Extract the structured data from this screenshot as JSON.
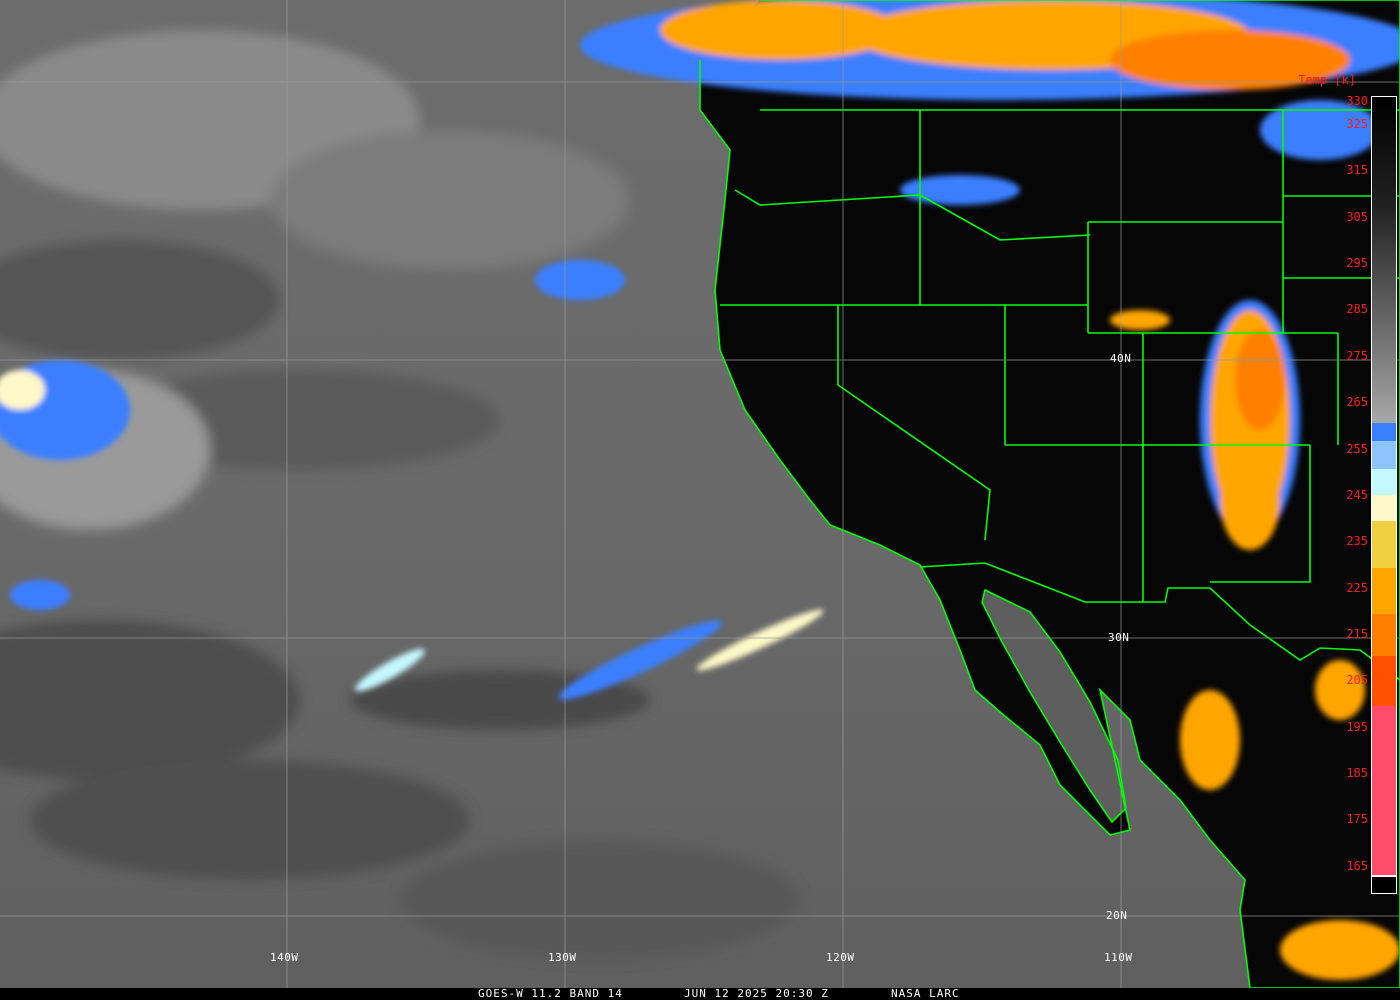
{
  "caption": {
    "satellite": "GOES-W 11.2 BAND 14",
    "datetime": "JUN 12 2025 20:30 Z",
    "credit": "NASA LARC"
  },
  "colorbar": {
    "title": "Temp [k]",
    "ticks": [
      "330",
      "325",
      "315",
      "305",
      "295",
      "285",
      "275",
      "265",
      "255",
      "245",
      "235",
      "225",
      "215",
      "205",
      "195",
      "185",
      "175",
      "165"
    ],
    "colors": {
      "warm_gray_top": "#000000",
      "warm_gray_bottom": "#a8a8a8",
      "blue": "#3a7fff",
      "light_blue": "#8cc4ff",
      "pale_cyan": "#c4f8ff",
      "cream": "#fff8c8",
      "yellow": "#f0d040",
      "orange": "#ffa500",
      "dark_orange": "#ff8000",
      "red_orange": "#ff5000",
      "pink": "#ff4d6a"
    }
  },
  "grid": {
    "lat_labels": [
      "40N",
      "30N",
      "20N"
    ],
    "lon_labels": [
      "140W",
      "130W",
      "120W",
      "110W"
    ]
  },
  "colors": {
    "border": "#00ff00",
    "land": "#050505",
    "ocean": "#6b6b6b"
  }
}
